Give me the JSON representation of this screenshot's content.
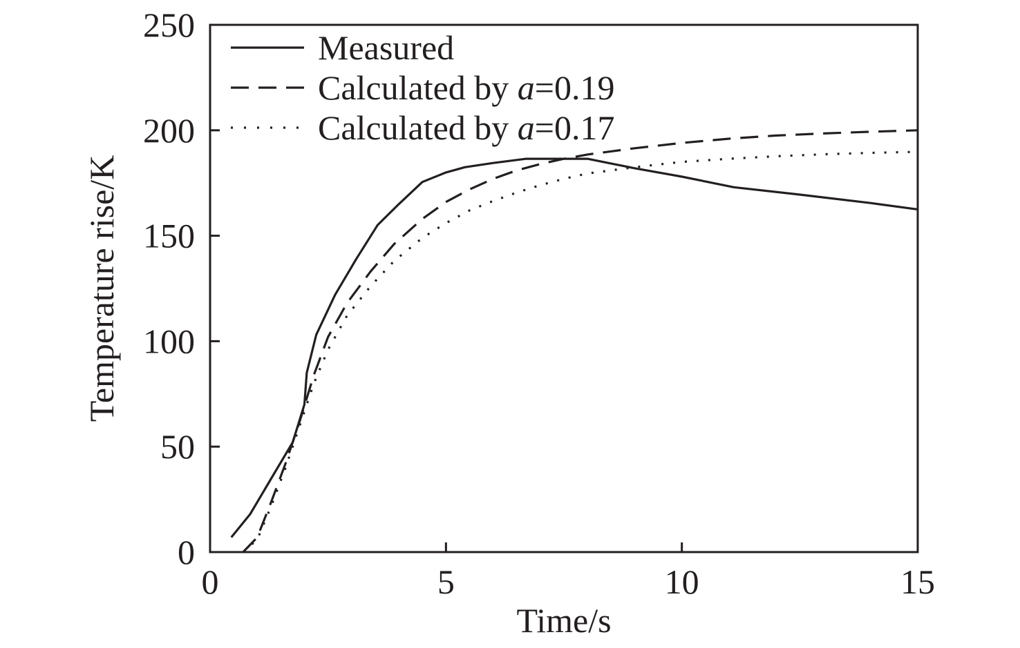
{
  "chart_data": {
    "type": "line",
    "title": "",
    "xlabel": "Time/s",
    "ylabel": "Temperature rise/K",
    "xlim": [
      0,
      15
    ],
    "ylim": [
      0,
      250
    ],
    "xticks": [
      0,
      5,
      10,
      15
    ],
    "yticks": [
      0,
      50,
      100,
      150,
      200,
      250
    ],
    "grid": false,
    "legend_position": "top-left",
    "series": [
      {
        "name": "Measured",
        "legend_prefix": "Measured",
        "legend_var": "",
        "legend_suffix": "",
        "style": "solid",
        "x": [
          0.45,
          0.85,
          1.3,
          1.75,
          2.0,
          2.05,
          2.25,
          2.65,
          3.1,
          3.55,
          4.0,
          4.5,
          5.0,
          5.4,
          6.0,
          6.7,
          7.5,
          8.0,
          9.0,
          10.0,
          11.1,
          12.5,
          14.0,
          15.0
        ],
        "y": [
          7,
          18,
          35,
          52,
          70,
          85,
          103,
          122,
          139,
          155,
          165,
          175.5,
          180,
          182.5,
          184.5,
          186.5,
          186.5,
          186.5,
          182,
          178,
          173,
          169.5,
          165.5,
          162.5
        ]
      },
      {
        "name": "Calculated by a=0.19",
        "legend_prefix": "Calculated by ",
        "legend_var": "a",
        "legend_suffix": "=0.19",
        "style": "dashed",
        "x": [
          0.7,
          1.0,
          1.3,
          1.6,
          1.9,
          2.2,
          2.5,
          2.9,
          3.4,
          3.9,
          4.5,
          5.0,
          5.5,
          6.0,
          6.5,
          7.0,
          7.5,
          8.0,
          9.0,
          10.0,
          11.0,
          12.0,
          13.0,
          14.0,
          15.0
        ],
        "y": [
          0,
          7,
          24,
          42,
          62,
          84,
          102,
          118,
          133,
          146,
          158,
          166,
          172,
          177,
          181,
          184,
          186.5,
          188.5,
          191.5,
          194,
          196,
          197.5,
          198.5,
          199.3,
          200
        ]
      },
      {
        "name": "Calculated by a=0.17",
        "legend_prefix": "Calculated by ",
        "legend_var": "a",
        "legend_suffix": "=0.17",
        "style": "dotted",
        "x": [
          0.7,
          1.0,
          1.3,
          1.6,
          1.9,
          2.2,
          2.5,
          2.9,
          3.4,
          3.9,
          4.5,
          5.0,
          5.5,
          6.0,
          6.5,
          7.0,
          7.5,
          8.0,
          9.0,
          10.0,
          11.0,
          12.0,
          13.0,
          14.0,
          15.0
        ],
        "y": [
          0,
          6,
          22,
          40,
          60,
          80,
          96,
          112,
          126,
          138,
          149,
          156,
          162,
          166.5,
          170.5,
          174,
          177,
          179.5,
          182.5,
          185,
          186.5,
          187.7,
          188.6,
          189.3,
          189.8
        ]
      }
    ]
  }
}
